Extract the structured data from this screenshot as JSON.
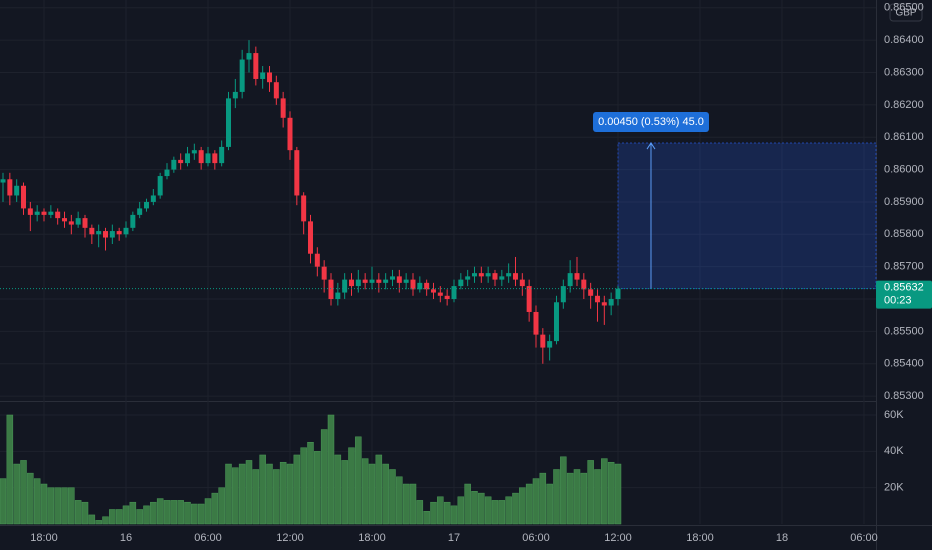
{
  "chart_data": {
    "type": "candlestick",
    "currency": "GBP",
    "x": [
      15,
      15.5,
      16,
      16.5,
      17,
      17.5,
      18,
      18.5,
      19,
      19.5,
      20,
      20.5,
      21,
      21.5,
      22,
      22.5,
      23,
      23.5,
      24,
      24.5,
      25,
      25.5,
      26,
      26.5,
      27,
      27.5,
      28,
      28.5,
      29,
      29.5,
      30,
      30.5,
      31,
      31.5,
      32,
      32.5,
      33,
      33.5,
      34,
      34.5,
      35,
      35.5,
      36,
      36.5,
      37,
      37.5,
      38,
      38.5,
      39,
      39.5,
      40,
      40.5,
      41,
      41.5,
      42,
      42.5,
      43,
      43.5,
      44,
      44.5,
      45,
      45.5,
      46,
      46.5,
      47,
      47.5,
      48,
      48.5,
      49,
      49.5,
      50,
      50.5,
      51,
      51.5,
      52,
      52.5,
      53,
      53.5,
      54,
      54.5,
      55,
      55.5,
      56,
      56.5,
      57,
      57.5,
      58,
      58.5,
      59,
      59.5,
      60
    ],
    "candles": [
      [
        0.8596,
        0.8599,
        0.859,
        0.8597
      ],
      [
        0.8597,
        0.8599,
        0.8589,
        0.8592
      ],
      [
        0.8592,
        0.8597,
        0.859,
        0.8595
      ],
      [
        0.8595,
        0.8596,
        0.8586,
        0.8588
      ],
      [
        0.8588,
        0.859,
        0.8581,
        0.8586
      ],
      [
        0.8586,
        0.8589,
        0.8584,
        0.8587
      ],
      [
        0.8587,
        0.8588,
        0.8584,
        0.8586
      ],
      [
        0.8586,
        0.8589,
        0.8585,
        0.8587
      ],
      [
        0.8587,
        0.8588,
        0.8583,
        0.8585
      ],
      [
        0.8585,
        0.8587,
        0.8582,
        0.8584
      ],
      [
        0.8584,
        0.8586,
        0.858,
        0.8583
      ],
      [
        0.8583,
        0.8587,
        0.8582,
        0.8585
      ],
      [
        0.8585,
        0.8586,
        0.8579,
        0.8582
      ],
      [
        0.8582,
        0.8583,
        0.8577,
        0.858
      ],
      [
        0.858,
        0.8583,
        0.8576,
        0.8581
      ],
      [
        0.8581,
        0.8582,
        0.8575,
        0.8579
      ],
      [
        0.8579,
        0.8583,
        0.8577,
        0.8581
      ],
      [
        0.8581,
        0.8582,
        0.8578,
        0.858
      ],
      [
        0.858,
        0.8584,
        0.8579,
        0.8582
      ],
      [
        0.8582,
        0.8587,
        0.8581,
        0.8586
      ],
      [
        0.8586,
        0.859,
        0.8585,
        0.8588
      ],
      [
        0.8588,
        0.8591,
        0.8587,
        0.859
      ],
      [
        0.859,
        0.8594,
        0.8589,
        0.8592
      ],
      [
        0.8592,
        0.8599,
        0.8591,
        0.8598
      ],
      [
        0.8598,
        0.8602,
        0.8597,
        0.86
      ],
      [
        0.86,
        0.8604,
        0.8599,
        0.8603
      ],
      [
        0.8603,
        0.8605,
        0.86,
        0.8602
      ],
      [
        0.8602,
        0.8607,
        0.8601,
        0.8605
      ],
      [
        0.8605,
        0.8608,
        0.8603,
        0.8606
      ],
      [
        0.8606,
        0.8607,
        0.86,
        0.8602
      ],
      [
        0.8602,
        0.8607,
        0.8601,
        0.8605
      ],
      [
        0.8605,
        0.8606,
        0.86,
        0.8602
      ],
      [
        0.8602,
        0.8609,
        0.8601,
        0.8607
      ],
      [
        0.8607,
        0.8624,
        0.8606,
        0.8622
      ],
      [
        0.8622,
        0.8628,
        0.8619,
        0.8624
      ],
      [
        0.8624,
        0.8637,
        0.8622,
        0.8634
      ],
      [
        0.8634,
        0.864,
        0.863,
        0.8636
      ],
      [
        0.8636,
        0.8638,
        0.8626,
        0.8628
      ],
      [
        0.8628,
        0.8632,
        0.8625,
        0.863
      ],
      [
        0.863,
        0.8632,
        0.8624,
        0.8627
      ],
      [
        0.8627,
        0.8629,
        0.862,
        0.8622
      ],
      [
        0.8622,
        0.8624,
        0.8613,
        0.8616
      ],
      [
        0.8616,
        0.8618,
        0.8603,
        0.8606
      ],
      [
        0.8606,
        0.8607,
        0.8589,
        0.8592
      ],
      [
        0.8592,
        0.8593,
        0.858,
        0.8584
      ],
      [
        0.8584,
        0.8586,
        0.8571,
        0.8574
      ],
      [
        0.8574,
        0.8576,
        0.8567,
        0.857
      ],
      [
        0.857,
        0.8572,
        0.8562,
        0.8566
      ],
      [
        0.8566,
        0.8568,
        0.8558,
        0.856
      ],
      [
        0.856,
        0.8565,
        0.8558,
        0.8562
      ],
      [
        0.8562,
        0.8568,
        0.856,
        0.8566
      ],
      [
        0.8566,
        0.8568,
        0.8561,
        0.8564
      ],
      [
        0.8564,
        0.8569,
        0.8562,
        0.8566
      ],
      [
        0.8566,
        0.8568,
        0.8563,
        0.8565
      ],
      [
        0.8565,
        0.857,
        0.8563,
        0.8566
      ],
      [
        0.8566,
        0.8568,
        0.8562,
        0.8565
      ],
      [
        0.8565,
        0.8568,
        0.8563,
        0.8566
      ],
      [
        0.8566,
        0.8569,
        0.8564,
        0.8567
      ],
      [
        0.8567,
        0.8569,
        0.8562,
        0.8565
      ],
      [
        0.8565,
        0.8568,
        0.8563,
        0.8566
      ],
      [
        0.8566,
        0.8568,
        0.8561,
        0.8563
      ],
      [
        0.8563,
        0.8567,
        0.8562,
        0.8565
      ],
      [
        0.8565,
        0.8566,
        0.8561,
        0.8563
      ],
      [
        0.8563,
        0.8565,
        0.856,
        0.8562
      ],
      [
        0.8562,
        0.8564,
        0.8559,
        0.8561
      ],
      [
        0.8561,
        0.8563,
        0.8558,
        0.856
      ],
      [
        0.856,
        0.8566,
        0.8559,
        0.8564
      ],
      [
        0.8564,
        0.8568,
        0.8563,
        0.8566
      ],
      [
        0.8566,
        0.8569,
        0.8564,
        0.8567
      ],
      [
        0.8567,
        0.857,
        0.8565,
        0.8568
      ],
      [
        0.8568,
        0.857,
        0.8565,
        0.8567
      ],
      [
        0.8567,
        0.857,
        0.8565,
        0.8568
      ],
      [
        0.8568,
        0.8569,
        0.8564,
        0.8566
      ],
      [
        0.8566,
        0.8569,
        0.8564,
        0.8567
      ],
      [
        0.8567,
        0.8571,
        0.8565,
        0.8568
      ],
      [
        0.8568,
        0.8573,
        0.8564,
        0.8566
      ],
      [
        0.8566,
        0.8568,
        0.8561,
        0.8564
      ],
      [
        0.8564,
        0.8566,
        0.8553,
        0.8556
      ],
      [
        0.8556,
        0.8558,
        0.8545,
        0.8549
      ],
      [
        0.8549,
        0.8551,
        0.854,
        0.8545
      ],
      [
        0.8545,
        0.8549,
        0.8541,
        0.8547
      ],
      [
        0.8547,
        0.8561,
        0.8546,
        0.8559
      ],
      [
        0.8559,
        0.8566,
        0.8557,
        0.8564
      ],
      [
        0.8564,
        0.8572,
        0.8562,
        0.8568
      ],
      [
        0.8568,
        0.8573,
        0.8564,
        0.8566
      ],
      [
        0.8566,
        0.8568,
        0.856,
        0.8563
      ],
      [
        0.8563,
        0.8565,
        0.8557,
        0.8561
      ],
      [
        0.8561,
        0.8563,
        0.8553,
        0.8559
      ],
      [
        0.8559,
        0.8561,
        0.8552,
        0.8558
      ],
      [
        0.8558,
        0.8562,
        0.8555,
        0.856
      ],
      [
        0.856,
        0.8564,
        0.8558,
        0.85632
      ]
    ],
    "up_color": "#089981",
    "down_color": "#f23645",
    "xlim": [
      14.78,
      78.88
    ],
    "xticks": [
      {
        "value": 18,
        "label": "18:00"
      },
      {
        "value": 24,
        "label": "16"
      },
      {
        "value": 30,
        "label": "06:00"
      },
      {
        "value": 36,
        "label": "12:00"
      },
      {
        "value": 42,
        "label": "18:00"
      },
      {
        "value": 48,
        "label": "17"
      },
      {
        "value": 54,
        "label": "06:00"
      },
      {
        "value": 60,
        "label": "12:00"
      },
      {
        "value": 66,
        "label": "18:00"
      },
      {
        "value": 72,
        "label": "18"
      },
      {
        "value": 78,
        "label": "06:00"
      }
    ],
    "ylim": [
      0.85288,
      0.86524
    ],
    "yticks": [
      {
        "value": 0.853,
        "label": "0.85300"
      },
      {
        "value": 0.854,
        "label": "0.85400"
      },
      {
        "value": 0.855,
        "label": "0.85500"
      },
      {
        "value": 0.856,
        "label": "0.85600"
      },
      {
        "value": 0.857,
        "label": "0.85700"
      },
      {
        "value": 0.858,
        "label": "0.85800"
      },
      {
        "value": 0.859,
        "label": "0.85900"
      },
      {
        "value": 0.86,
        "label": "0.86000"
      },
      {
        "value": 0.861,
        "label": "0.86100"
      },
      {
        "value": 0.862,
        "label": "0.86200"
      },
      {
        "value": 0.863,
        "label": "0.86300"
      },
      {
        "value": 0.864,
        "label": "0.86400"
      },
      {
        "value": 0.865,
        "label": "0.86500"
      }
    ],
    "last_price": 0.85632,
    "countdown": "00:23",
    "volume": {
      "color": "#3b7a45",
      "values": [
        25000,
        60000,
        33000,
        35000,
        28000,
        25000,
        22000,
        20000,
        20000,
        20000,
        20000,
        13000,
        12000,
        5000,
        2000,
        4000,
        8000,
        8000,
        10000,
        12000,
        8000,
        10000,
        12000,
        14000,
        13000,
        13000,
        13000,
        12000,
        11000,
        11000,
        14000,
        17000,
        20000,
        33000,
        31000,
        33000,
        35000,
        30000,
        38000,
        33000,
        30000,
        34000,
        33000,
        38000,
        42000,
        45000,
        40000,
        52000,
        60000,
        38000,
        35000,
        42000,
        48000,
        36000,
        33000,
        38000,
        33000,
        30000,
        26000,
        22000,
        22000,
        13000,
        7000,
        12000,
        15000,
        12000,
        10000,
        15000,
        22000,
        18000,
        17000,
        15000,
        13000,
        13000,
        15000,
        17000,
        20000,
        22000,
        25000,
        28000,
        22000,
        30000,
        37000,
        28000,
        30000,
        28000,
        35000,
        30000,
        36000,
        34000,
        33000
      ],
      "ylim": [
        0,
        66600
      ],
      "yticks": [
        {
          "value": 20000,
          "label": "20K"
        },
        {
          "value": 40000,
          "label": "40K"
        },
        {
          "value": 60000,
          "label": "60K"
        }
      ]
    },
    "measure": {
      "label": "0.00450 (0.53%) 45.0",
      "from": 0.85632,
      "to": 0.86082,
      "x_from": 60,
      "x_to": 78.88,
      "color": "#2962ff"
    }
  }
}
